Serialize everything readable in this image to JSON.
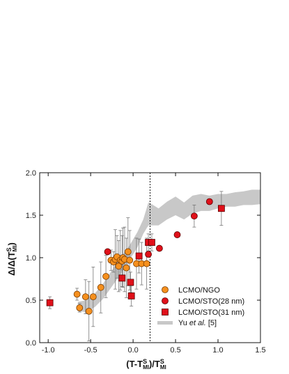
{
  "chart_data": {
    "type": "scatter",
    "xlabel": "(T-T^S_MI)/T^S_MI",
    "ylabel": "Δ/Δ(T^S_MI)",
    "xlim": [
      -1.1,
      1.5
    ],
    "ylim": [
      0.0,
      2.0
    ],
    "xticks": [
      -1.0,
      -0.5,
      0.0,
      0.5,
      1.0,
      1.5
    ],
    "xtick_labels": [
      "-1.0",
      "-0.5",
      "0.0",
      "0.5",
      "1.0",
      "1.5"
    ],
    "yticks": [
      0.0,
      0.5,
      1.0,
      1.5,
      2.0
    ],
    "ytick_labels": [
      "0.0",
      "0.5",
      "1.0",
      "1.5",
      "2.0"
    ],
    "grid": false,
    "legend_position": "lower-right",
    "vline_x": 0.2,
    "colors": {
      "ngo": "#f5901e",
      "sto28": "#e0101a",
      "sto31": "#e0101a",
      "band": "#c8c8c8",
      "errorbar": "#777777"
    },
    "series": [
      {
        "name": "LCMO/NGO",
        "marker": "circle",
        "color": "#f5901e",
        "x": [
          -0.66,
          -0.63,
          -0.56,
          -0.52,
          -0.47,
          -0.38,
          -0.32,
          -0.26,
          -0.23,
          -0.21,
          -0.19,
          -0.17,
          -0.15,
          -0.13,
          -0.12,
          -0.1,
          -0.08,
          -0.06,
          -0.04,
          0.04,
          0.1,
          0.16
        ],
        "y": [
          0.57,
          0.41,
          0.54,
          0.37,
          0.54,
          0.65,
          0.78,
          0.97,
          0.95,
          0.98,
          1.01,
          0.9,
          0.97,
          0.96,
          1.0,
          0.98,
          0.88,
          1.07,
          0.97,
          0.93,
          0.93,
          0.93
        ],
        "err": [
          0.07,
          0.05,
          0.2,
          0.35,
          0.35,
          0.3,
          0.25,
          0.12,
          0.12,
          0.35,
          0.25,
          0.3,
          0.35,
          0.3,
          0.35,
          0.38,
          0.35,
          0.4,
          0.35,
          0.3,
          0.25,
          0.3
        ]
      },
      {
        "name": "LCMO/STO(28 nm)",
        "marker": "circle",
        "color": "#e0101a",
        "x": [
          -0.3,
          0.18,
          0.31,
          0.52,
          0.72,
          0.9
        ],
        "y": [
          1.07,
          1.04,
          1.11,
          1.27,
          1.49,
          1.66
        ],
        "err": [
          0.0,
          0.0,
          0.0,
          0.0,
          0.13,
          0.0
        ]
      },
      {
        "name": "LCMO/STO(31 nm)",
        "marker": "square",
        "color": "#e0101a",
        "x": [
          -0.98,
          -0.13,
          -0.03,
          -0.02,
          0.07,
          0.18,
          0.22,
          1.04
        ],
        "y": [
          0.47,
          0.76,
          0.71,
          0.55,
          1.02,
          1.18,
          1.18,
          1.58
        ],
        "err": [
          0.07,
          0.1,
          0.12,
          0.12,
          0.2,
          0.1,
          0.1,
          0.2
        ]
      }
    ],
    "band": {
      "name": "Yu et al. [5]",
      "x": [
        -0.65,
        -0.55,
        -0.45,
        -0.35,
        -0.25,
        -0.15,
        -0.05,
        0.05,
        0.12,
        0.18,
        0.22,
        0.3,
        0.4,
        0.5,
        0.6,
        0.7,
        0.8,
        0.9,
        1.0,
        1.1,
        1.2,
        1.3,
        1.4,
        1.5
      ],
      "upper": [
        0.48,
        0.5,
        0.58,
        0.7,
        0.85,
        1.0,
        1.13,
        1.3,
        1.45,
        1.65,
        1.63,
        1.58,
        1.66,
        1.72,
        1.65,
        1.73,
        1.75,
        1.73,
        1.75,
        1.75,
        1.77,
        1.78,
        1.8,
        1.8
      ],
      "lower": [
        0.37,
        0.36,
        0.42,
        0.52,
        0.66,
        0.8,
        0.96,
        1.12,
        1.28,
        1.38,
        1.38,
        1.38,
        1.45,
        1.5,
        1.45,
        1.52,
        1.55,
        1.55,
        1.58,
        1.6,
        1.6,
        1.62,
        1.62,
        1.63
      ]
    }
  },
  "legend": {
    "ngo_label": "LCMO/NGO",
    "sto28_label": "LCMO/STO(28 nm)",
    "sto31_label": "LCMO/STO(31 nm)",
    "band_label_prefix": "Yu ",
    "band_label_italic": "et al.",
    "band_label_suffix": " [5]"
  }
}
